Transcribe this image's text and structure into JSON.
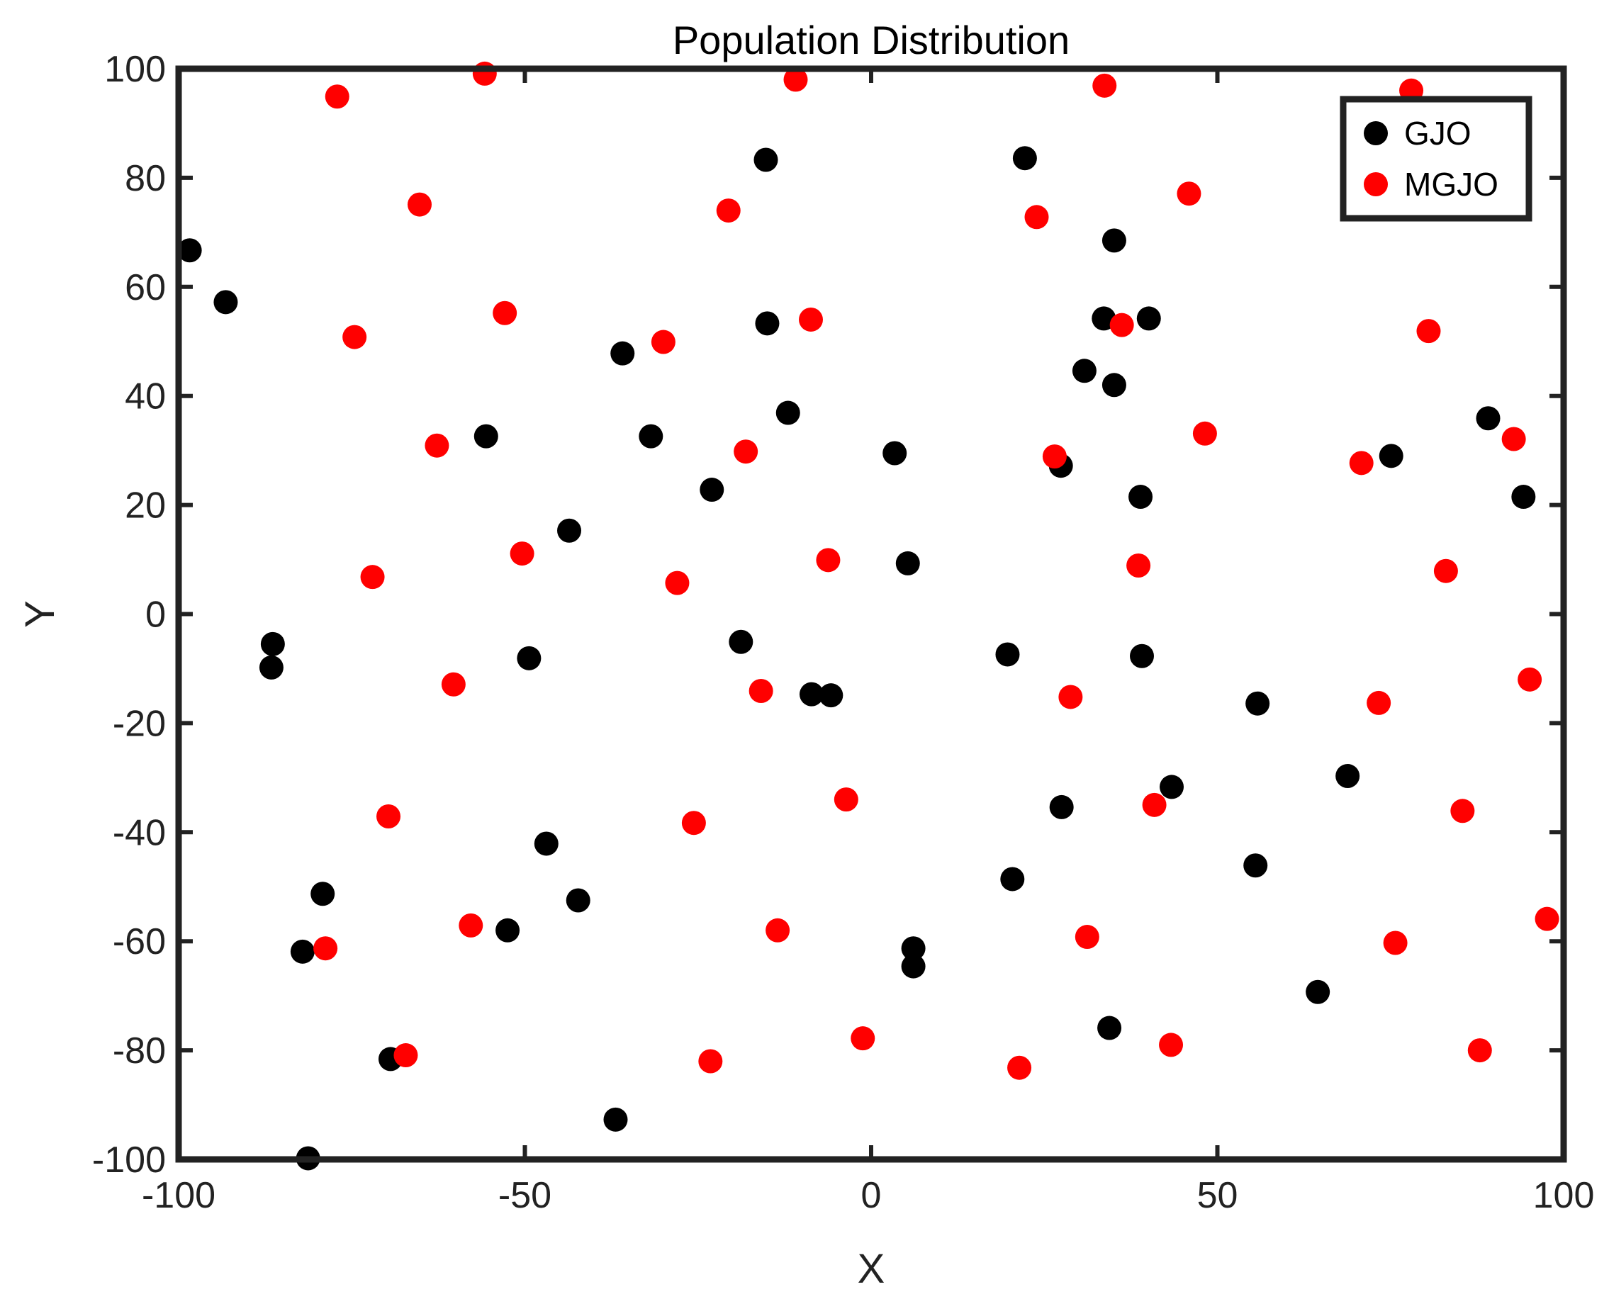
{
  "chart_data": {
    "type": "scatter",
    "title": "Population Distribution",
    "xlabel": "X",
    "ylabel": "Y",
    "xlim": [
      -100,
      100
    ],
    "ylim": [
      -100,
      100
    ],
    "xticks": [
      -100,
      -50,
      0,
      50,
      100
    ],
    "yticks": [
      -100,
      -80,
      -60,
      -40,
      -20,
      0,
      20,
      40,
      60,
      80,
      100
    ],
    "grid": false,
    "legend_position": "top-right",
    "series": [
      {
        "name": "GJO",
        "color": "#000000",
        "points": [
          [
            -98.4,
            66.7
          ],
          [
            -93.2,
            57.2
          ],
          [
            -86.4,
            -5.5
          ],
          [
            -86.6,
            -9.8
          ],
          [
            -79.2,
            -51.3
          ],
          [
            -82.1,
            -61.9
          ],
          [
            -81.3,
            -99.8
          ],
          [
            -69.4,
            -81.6
          ],
          [
            -55.6,
            32.6
          ],
          [
            -52.5,
            -58.0
          ],
          [
            -49.4,
            -8.1
          ],
          [
            -43.6,
            15.3
          ],
          [
            -46.9,
            -42.1
          ],
          [
            -42.3,
            -52.5
          ],
          [
            -35.9,
            47.8
          ],
          [
            -36.9,
            -92.7
          ],
          [
            -31.8,
            32.6
          ],
          [
            -23.0,
            22.8
          ],
          [
            -18.8,
            -5.1
          ],
          [
            -15.2,
            83.3
          ],
          [
            -15.0,
            53.3
          ],
          [
            -12.0,
            36.9
          ],
          [
            -8.6,
            -14.7
          ],
          [
            -5.8,
            -14.9
          ],
          [
            3.4,
            29.5
          ],
          [
            5.3,
            9.3
          ],
          [
            6.1,
            -61.3
          ],
          [
            6.1,
            -64.6
          ],
          [
            19.7,
            -7.4
          ],
          [
            20.4,
            -48.6
          ],
          [
            22.2,
            83.6
          ],
          [
            27.4,
            27.2
          ],
          [
            27.5,
            -35.4
          ],
          [
            30.8,
            44.6
          ],
          [
            33.6,
            54.2
          ],
          [
            35.1,
            68.5
          ],
          [
            35.1,
            42.0
          ],
          [
            34.4,
            -75.9
          ],
          [
            38.9,
            21.5
          ],
          [
            39.1,
            -7.7
          ],
          [
            40.1,
            54.2
          ],
          [
            43.4,
            -31.7
          ],
          [
            55.8,
            -16.4
          ],
          [
            55.5,
            -46.1
          ],
          [
            64.5,
            -69.3
          ],
          [
            68.8,
            -29.7
          ],
          [
            75.1,
            29.0
          ],
          [
            89.1,
            35.9
          ],
          [
            94.2,
            21.5
          ]
        ]
      },
      {
        "name": "MGJO",
        "color": "#ff0000",
        "points": [
          [
            -77.1,
            94.9
          ],
          [
            -55.8,
            99.1
          ],
          [
            -65.2,
            75.1
          ],
          [
            -74.6,
            50.8
          ],
          [
            -52.9,
            55.2
          ],
          [
            -62.7,
            30.9
          ],
          [
            -72.0,
            6.8
          ],
          [
            -50.4,
            11.1
          ],
          [
            -60.3,
            -12.9
          ],
          [
            -69.7,
            -37.1
          ],
          [
            -57.8,
            -57.1
          ],
          [
            -78.8,
            -61.3
          ],
          [
            -67.2,
            -80.9
          ],
          [
            -10.9,
            98.0
          ],
          [
            -20.6,
            74.0
          ],
          [
            -8.7,
            54.0
          ],
          [
            -30.0,
            49.9
          ],
          [
            -18.1,
            29.8
          ],
          [
            -6.2,
            9.9
          ],
          [
            -28.0,
            5.7
          ],
          [
            -15.9,
            -14.1
          ],
          [
            -25.6,
            -38.3
          ],
          [
            -3.6,
            -34.0
          ],
          [
            -13.5,
            -58.0
          ],
          [
            -23.2,
            -82.0
          ],
          [
            -1.2,
            -77.8
          ],
          [
            33.7,
            96.9
          ],
          [
            23.9,
            72.8
          ],
          [
            45.9,
            77.1
          ],
          [
            36.2,
            53.0
          ],
          [
            26.5,
            28.9
          ],
          [
            48.2,
            33.1
          ],
          [
            38.6,
            8.9
          ],
          [
            28.8,
            -15.2
          ],
          [
            40.9,
            -35.0
          ],
          [
            31.2,
            -59.2
          ],
          [
            43.3,
            -79.0
          ],
          [
            21.4,
            -83.2
          ],
          [
            78.0,
            96.0
          ],
          [
            80.5,
            51.9
          ],
          [
            70.8,
            27.7
          ],
          [
            92.8,
            32.1
          ],
          [
            83.0,
            7.9
          ],
          [
            95.1,
            -12.0
          ],
          [
            73.3,
            -16.3
          ],
          [
            85.4,
            -36.1
          ],
          [
            75.7,
            -60.3
          ],
          [
            97.6,
            -55.9
          ],
          [
            87.9,
            -80.0
          ]
        ]
      }
    ]
  }
}
